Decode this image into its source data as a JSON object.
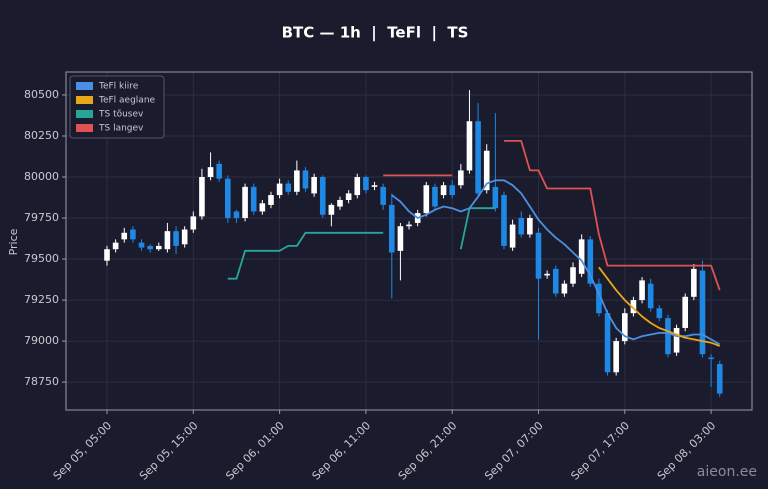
{
  "chart_data": {
    "type": "candlestick",
    "title": "BTC — 1h  |  TeFl  |  TS",
    "y_label": "Price",
    "watermark": "aieon.ee",
    "x": [
      "Sep 05, 05:00",
      "Sep 05, 06:00",
      "Sep 05, 07:00",
      "Sep 05, 08:00",
      "Sep 05, 09:00",
      "Sep 05, 10:00",
      "Sep 05, 11:00",
      "Sep 05, 12:00",
      "Sep 05, 13:00",
      "Sep 05, 14:00",
      "Sep 05, 15:00",
      "Sep 05, 16:00",
      "Sep 05, 17:00",
      "Sep 05, 18:00",
      "Sep 05, 19:00",
      "Sep 05, 20:00",
      "Sep 05, 21:00",
      "Sep 05, 22:00",
      "Sep 05, 23:00",
      "Sep 06, 00:00",
      "Sep 06, 01:00",
      "Sep 06, 02:00",
      "Sep 06, 03:00",
      "Sep 06, 04:00",
      "Sep 06, 05:00",
      "Sep 06, 06:00",
      "Sep 06, 07:00",
      "Sep 06, 08:00",
      "Sep 06, 09:00",
      "Sep 06, 10:00",
      "Sep 06, 11:00",
      "Sep 06, 12:00",
      "Sep 06, 13:00",
      "Sep 06, 14:00",
      "Sep 06, 15:00",
      "Sep 06, 16:00",
      "Sep 06, 17:00",
      "Sep 06, 18:00",
      "Sep 06, 19:00",
      "Sep 06, 20:00",
      "Sep 06, 21:00",
      "Sep 06, 22:00",
      "Sep 06, 23:00",
      "Sep 07, 00:00",
      "Sep 07, 01:00",
      "Sep 07, 02:00",
      "Sep 07, 03:00",
      "Sep 07, 04:00",
      "Sep 07, 05:00",
      "Sep 07, 06:00",
      "Sep 07, 07:00",
      "Sep 07, 08:00",
      "Sep 07, 09:00",
      "Sep 07, 10:00",
      "Sep 07, 11:00",
      "Sep 07, 12:00",
      "Sep 07, 13:00",
      "Sep 07, 14:00",
      "Sep 07, 15:00",
      "Sep 07, 16:00",
      "Sep 07, 17:00",
      "Sep 07, 18:00",
      "Sep 07, 19:00",
      "Sep 07, 20:00",
      "Sep 07, 21:00",
      "Sep 07, 22:00",
      "Sep 07, 23:00",
      "Sep 08, 00:00",
      "Sep 08, 01:00",
      "Sep 08, 02:00",
      "Sep 08, 03:00",
      "Sep 08, 04:00"
    ],
    "xticks": [
      "Sep 05, 05:00",
      "Sep 05, 15:00",
      "Sep 06, 01:00",
      "Sep 06, 11:00",
      "Sep 06, 21:00",
      "Sep 07, 07:00",
      "Sep 07, 17:00",
      "Sep 08, 03:00"
    ],
    "open": [
      79490,
      79560,
      79620,
      79680,
      79600,
      79580,
      79560,
      79560,
      79670,
      79590,
      79680,
      79760,
      80000,
      80080,
      79990,
      79790,
      79750,
      79940,
      79790,
      79830,
      79890,
      79960,
      79910,
      80040,
      79900,
      80000,
      79770,
      79820,
      79860,
      79890,
      80000,
      79940,
      79940,
      79830,
      79550,
      79700,
      79720,
      79780,
      79940,
      79890,
      79950,
      79950,
      80040,
      80340,
      79920,
      79940,
      79890,
      79570,
      79750,
      79650,
      79660,
      79400,
      79440,
      79290,
      79350,
      79410,
      79620,
      79350,
      79170,
      78810,
      79000,
      79170,
      79250,
      79350,
      79200,
      79140,
      78930,
      79080,
      79270,
      79430,
      78900,
      78860
    ],
    "high": [
      79580,
      79620,
      79690,
      79700,
      79620,
      79590,
      79600,
      79720,
      79700,
      79700,
      79790,
      80050,
      80150,
      80100,
      80010,
      79800,
      79960,
      79960,
      79860,
      79910,
      79990,
      79980,
      80100,
      80060,
      80020,
      80010,
      79840,
      79880,
      79920,
      80020,
      80010,
      79970,
      79960,
      79900,
      79720,
      79730,
      79800,
      79970,
      79960,
      79970,
      79980,
      80080,
      80530,
      80450,
      80200,
      80390,
      79910,
      79740,
      79790,
      79770,
      79690,
      79430,
      79460,
      79370,
      79480,
      79650,
      79640,
      79380,
      79190,
      79020,
      79200,
      79270,
      79390,
      79380,
      79220,
      79160,
      79100,
      79290,
      79470,
      79490,
      78920,
      78880
    ],
    "low": [
      79460,
      79540,
      79600,
      79600,
      79550,
      79540,
      79550,
      79540,
      79530,
      79570,
      79660,
      79740,
      79980,
      79970,
      79720,
      79720,
      79730,
      79770,
      79770,
      79810,
      79870,
      79890,
      79890,
      79910,
      79880,
      79750,
      79700,
      79800,
      79840,
      79870,
      79900,
      79920,
      79800,
      79260,
      79370,
      79680,
      79700,
      79760,
      79800,
      79870,
      79870,
      79930,
      80020,
      79880,
      79900,
      79790,
      79560,
      79550,
      79630,
      79630,
      79010,
      79380,
      79270,
      79270,
      79330,
      79390,
      79330,
      79150,
      78790,
      78790,
      78980,
      79150,
      79230,
      79180,
      79120,
      78900,
      78910,
      79060,
      79250,
      78900,
      78720,
      78660
    ],
    "close": [
      79560,
      79600,
      79660,
      79620,
      79570,
      79560,
      79580,
      79670,
      79580,
      79680,
      79760,
      80000,
      80060,
      79990,
      79750,
      79750,
      79940,
      79790,
      79840,
      79890,
      79960,
      79910,
      80040,
      79930,
      80000,
      79770,
      79830,
      79860,
      79900,
      80000,
      79920,
      79950,
      79830,
      79540,
      79700,
      79710,
      79780,
      79950,
      79820,
      79950,
      79890,
      80040,
      80340,
      79900,
      80160,
      79810,
      79580,
      79710,
      79650,
      79750,
      79380,
      79410,
      79290,
      79350,
      79450,
      79620,
      79350,
      79170,
      78810,
      79000,
      79170,
      79250,
      79370,
      79200,
      79140,
      78920,
      79080,
      79270,
      79440,
      78920,
      78890,
      78680
    ],
    "up_color": "#ffffff",
    "down_color": "#1e88e5",
    "series": [
      {
        "name": "TeFl kiire",
        "color": "#4a90e2",
        "values": [
          null,
          null,
          null,
          null,
          null,
          null,
          null,
          null,
          null,
          null,
          null,
          null,
          null,
          null,
          null,
          null,
          null,
          null,
          null,
          null,
          null,
          null,
          null,
          null,
          null,
          null,
          null,
          null,
          null,
          null,
          null,
          null,
          null,
          79890,
          79850,
          79790,
          79750,
          79770,
          79800,
          79820,
          79810,
          79790,
          79810,
          79880,
          79960,
          79980,
          79980,
          79950,
          79900,
          79820,
          79740,
          79680,
          79630,
          79590,
          79540,
          79490,
          79400,
          79290,
          79170,
          79080,
          79030,
          79010,
          79030,
          79040,
          79050,
          79050,
          79030,
          79030,
          79040,
          79040,
          79010,
          78980
        ]
      },
      {
        "name": "TeFl aeglane",
        "color": "#e6a817",
        "values": [
          null,
          null,
          null,
          null,
          null,
          null,
          null,
          null,
          null,
          null,
          null,
          null,
          null,
          null,
          null,
          null,
          null,
          null,
          null,
          null,
          null,
          null,
          null,
          null,
          null,
          null,
          null,
          null,
          null,
          null,
          null,
          null,
          null,
          null,
          null,
          null,
          null,
          null,
          null,
          null,
          null,
          null,
          null,
          null,
          null,
          null,
          null,
          null,
          null,
          null,
          null,
          null,
          null,
          null,
          null,
          null,
          null,
          79450,
          79380,
          79310,
          79250,
          79200,
          79150,
          79110,
          79080,
          79060,
          79040,
          79020,
          79010,
          79000,
          78990,
          78970
        ]
      },
      {
        "name": "TS tõusev",
        "color": "#26a69a",
        "values": [
          null,
          null,
          null,
          null,
          null,
          null,
          null,
          null,
          null,
          null,
          null,
          null,
          null,
          null,
          79380,
          79380,
          79550,
          79550,
          79550,
          79550,
          79550,
          79580,
          79580,
          79660,
          79660,
          79660,
          79660,
          79660,
          79660,
          79660,
          79660,
          79660,
          79660,
          null,
          null,
          null,
          null,
          null,
          null,
          null,
          null,
          79560,
          79810,
          79810,
          79810,
          79810,
          null,
          null,
          null,
          null,
          null,
          null,
          null,
          null,
          null,
          null,
          null,
          null,
          null,
          null,
          null,
          null,
          null,
          null,
          null,
          null,
          null,
          null,
          null,
          null,
          null,
          null
        ]
      },
      {
        "name": "TS langev",
        "color": "#e05252",
        "values": [
          null,
          null,
          null,
          null,
          null,
          null,
          null,
          null,
          null,
          null,
          null,
          null,
          null,
          null,
          null,
          null,
          null,
          null,
          null,
          null,
          null,
          null,
          null,
          null,
          null,
          null,
          null,
          null,
          null,
          null,
          null,
          null,
          80010,
          80010,
          80010,
          80010,
          80010,
          80010,
          80010,
          80010,
          80010,
          null,
          null,
          null,
          null,
          null,
          80220,
          80220,
          80220,
          80040,
          80040,
          79930,
          79930,
          79930,
          79930,
          79930,
          79930,
          79650,
          79460,
          79460,
          79460,
          79460,
          79460,
          79460,
          79460,
          79460,
          79460,
          79460,
          79460,
          79460,
          79460,
          79310
        ]
      }
    ],
    "ylim": [
      78580,
      80640
    ],
    "yticks": [
      78750,
      79000,
      79250,
      79500,
      79750,
      80000,
      80250,
      80500
    ],
    "grid": true,
    "legend": "upper left"
  }
}
